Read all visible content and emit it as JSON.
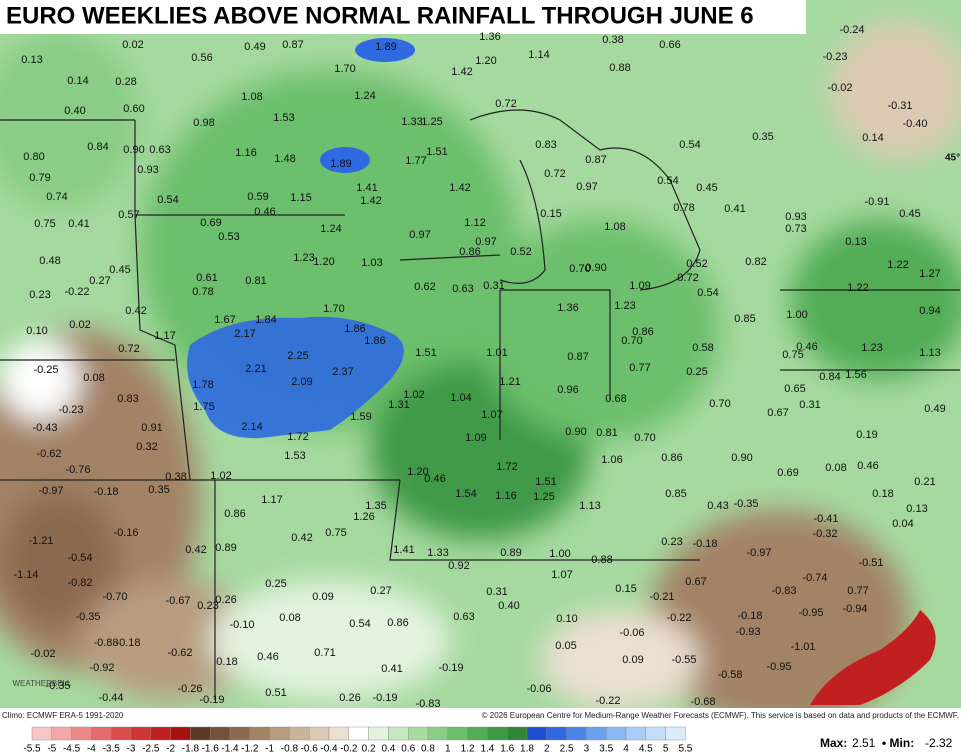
{
  "title": "EURO WEEKLIES ABOVE NORMAL RAINFALL THROUGH JUNE 6",
  "lat_label": "45°",
  "logo": "WEATHERBELL",
  "credit": "Climo: ECMWF ERA-5 1991-2020",
  "copyright": "© 2026 European Centre for Medium-Range Weather Forecasts (ECMWF). This service is based on data and products of the ECMWF.",
  "max_label": "Max:",
  "max": "2.51",
  "min_label": "Min:",
  "min": "-2.32",
  "legend": {
    "ticks": [
      "-5.5",
      "-5",
      "-4.5",
      "-4",
      "-3.5",
      "-3",
      "-2.5",
      "-2",
      "-1.8",
      "-1.6",
      "-1.4",
      "-1.2",
      "-1",
      "-0.8",
      "-0.6",
      "-0.4",
      "-0.2",
      "0.2",
      "0.4",
      "0.6",
      "0.8",
      "1",
      "1.2",
      "1.4",
      "1.6",
      "1.8",
      "2",
      "2.5",
      "3",
      "3.5",
      "4",
      "4.5",
      "5",
      "5.5"
    ],
    "colors": [
      "#f7c6c6",
      "#f2a8a8",
      "#ec8a8a",
      "#e46c6c",
      "#dc4e4e",
      "#cf3535",
      "#c02020",
      "#a81010",
      "#5e3a28",
      "#75503a",
      "#8c6a50",
      "#a38366",
      "#b89c80",
      "#cbb49a",
      "#dccab4",
      "#ebdfd0",
      "#ffffff",
      "#e3f3df",
      "#c6e8c0",
      "#a8dba2",
      "#8acd86",
      "#6cbf6c",
      "#52ad56",
      "#3f9a46",
      "#2e8638",
      "#1f4fd0",
      "#2f6ae0",
      "#4a86ea",
      "#6aa0f0",
      "#8ab8f4",
      "#a8cdf7",
      "#c2defa",
      "#d8ecfc"
    ]
  },
  "stations": [
    "0.02",
    "0.49",
    "0.87",
    "1.89",
    "1.36",
    "0.38",
    "0.66",
    "-0.24",
    "-0.23",
    "0.13",
    "0.56",
    "1.70",
    "1.42",
    "1.20",
    "1.14",
    "0.88",
    "0.14",
    "0.28",
    "-0.02",
    "1.08",
    "1.24",
    "0.72",
    "-0.31",
    "0.40",
    "0.60",
    "1.53",
    "1.33",
    "1.25",
    "0.98",
    "-0.40",
    "0.35",
    "0.14",
    "0.84",
    "0.90",
    "0.63",
    "1.16",
    "1.48",
    "1.89",
    "1.77",
    "1.51",
    "0.83",
    "0.87",
    "0.54",
    "0.80",
    "0.93",
    "0.72",
    "0.45",
    "0.54",
    "0.79",
    "1.41",
    "1.42",
    "1.42",
    "0.97",
    "0.74",
    "0.54",
    "0.59",
    "1.15",
    "0.46",
    "0.15",
    "0.78",
    "0.41",
    "-0.91",
    "0.45",
    "0.57",
    "0.69",
    "0.93",
    "0.75",
    "0.41",
    "1.24",
    "1.12",
    "1.08",
    "0.73",
    "0.53",
    "0.97",
    "0.97",
    "0.13",
    "0.86",
    "0.52",
    "0.48",
    "1.23",
    "1.20",
    "1.03",
    "0.82",
    "1.22",
    "0.45",
    "0.27",
    "0.70",
    "0.90",
    "0.52",
    "0.72",
    "1.27",
    "0.61",
    "0.81",
    "0.62",
    "0.63",
    "0.31",
    "1.09",
    "0.54",
    "1.22",
    "0.23",
    "-0.22",
    "0.78",
    "1.36",
    "1.23",
    "1.70",
    "0.42",
    "0.94",
    "1.67",
    "1.84",
    "1.00",
    "0.85",
    "0.10",
    "0.02",
    "1.86",
    "2.17",
    "0.86",
    "1.17",
    "1.86",
    "0.70",
    "0.72",
    "1.51",
    "2.25",
    "1.01",
    "0.87",
    "0.58",
    "0.46",
    "1.23",
    "1.13",
    "0.75",
    "-0.25",
    "2.21",
    "2.37",
    "0.77",
    "0.25",
    "0.08",
    "1.78",
    "2.09",
    "1.21",
    "0.84",
    "1.56",
    "0.96",
    "0.65",
    "1.02",
    "1.04",
    "1.31",
    "0.83",
    "1.75",
    "0.68",
    "0.31",
    "0.70",
    "-0.23",
    "1.59",
    "1.07",
    "0.67",
    "0.49",
    "-0.43",
    "0.91",
    "2.14",
    "0.90",
    "0.81",
    "1.72",
    "1.09",
    "0.70",
    "0.19",
    "0.32",
    "-0.62",
    "1.53",
    "1.06",
    "0.86",
    "0.90",
    "0.46",
    "-0.76",
    "1.72",
    "1.20",
    "0.08",
    "0.69",
    "0.38",
    "1.02",
    "0.46",
    "1.51",
    "0.21",
    "-0.97",
    "-0.18",
    "0.35",
    "1.54",
    "1.16",
    "1.25",
    "0.85",
    "0.18",
    "1.17",
    "1.35",
    "1.13",
    "0.43",
    "-0.35",
    "0.13",
    "0.86",
    "1.26",
    "-0.41",
    "0.04",
    "-0.16",
    "0.42",
    "0.75",
    "-0.32",
    "-1.21",
    "0.23",
    "-0.18",
    "0.89",
    "1.41",
    "1.33",
    "0.89",
    "1.00",
    "-0.97",
    "0.42",
    "-0.54",
    "0.92",
    "0.88",
    "-0.51",
    "-1.14",
    "1.07",
    "-0.74",
    "-0.82",
    "0.25",
    "0.67",
    "0.27",
    "0.15",
    "-0.83",
    "0.77",
    "-0.70",
    "0.31",
    "0.09",
    "-0.67",
    "0.26",
    "0.23",
    "0.40",
    "-0.21",
    "-0.95",
    "-0.94",
    "-0.35",
    "0.08",
    "0.54",
    "0.86",
    "0.63",
    "0.10",
    "-0.22",
    "-0.18",
    "-0.10",
    "-0.88",
    "-0.18",
    "-0.06",
    "-0.93",
    "0.71",
    "0.05",
    "-1.01",
    "-0.02",
    "-0.62",
    "0.46",
    "0.09",
    "-0.55",
    "0.18",
    "-0.92",
    "0.41",
    "-0.19",
    "-0.58",
    "-0.95",
    "-0.26",
    "0.51",
    "0.26",
    "-0.19",
    "-0.83",
    "-0.06",
    "-0.22",
    "-0.44",
    "-0.19",
    "-0.68",
    "-0.35"
  ]
}
